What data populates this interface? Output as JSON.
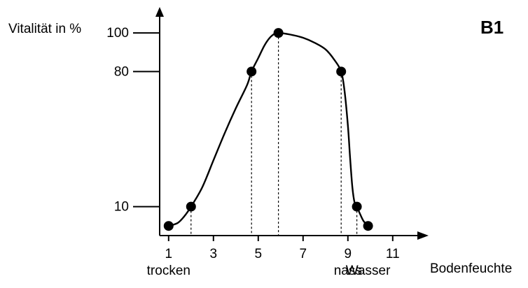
{
  "badge": "B1",
  "chart_data": {
    "type": "line",
    "ylabel": "Vitalität in %",
    "xlabel": "Bodenfeuchte",
    "xlim": [
      0.6,
      12.6
    ],
    "ylim": [
      -5,
      112
    ],
    "x_ticks": [
      1,
      3,
      5,
      7,
      9,
      11
    ],
    "x_tick_labels": [
      "1",
      "3",
      "5",
      "7",
      "9",
      "11"
    ],
    "y_ticks": [
      10,
      80,
      100
    ],
    "y_tick_labels": [
      "10",
      "80",
      "100"
    ],
    "x_categories": [
      {
        "x": 1,
        "label": "trocken"
      },
      {
        "x": 9,
        "label": "nass"
      },
      {
        "x": 9.9,
        "label": "Wasser"
      }
    ],
    "series": [
      {
        "points": [
          {
            "x": 1.0,
            "y": 0
          },
          {
            "x": 2.0,
            "y": 10
          },
          {
            "x": 4.7,
            "y": 80
          },
          {
            "x": 5.9,
            "y": 100
          },
          {
            "x": 8.7,
            "y": 80
          },
          {
            "x": 9.4,
            "y": 10
          },
          {
            "x": 9.9,
            "y": 0
          }
        ],
        "curve": [
          [
            1.0,
            0
          ],
          [
            1.4,
            1.5
          ],
          [
            1.7,
            5
          ],
          [
            2.0,
            10
          ],
          [
            2.5,
            20
          ],
          [
            3.0,
            34
          ],
          [
            3.5,
            48
          ],
          [
            4.0,
            61
          ],
          [
            4.5,
            73
          ],
          [
            4.7,
            80
          ],
          [
            5.0,
            87
          ],
          [
            5.3,
            94
          ],
          [
            5.6,
            98.5
          ],
          [
            5.9,
            100
          ],
          [
            6.5,
            99
          ],
          [
            7.0,
            97.5
          ],
          [
            7.5,
            95
          ],
          [
            8.0,
            91.5
          ],
          [
            8.4,
            86
          ],
          [
            8.7,
            80
          ],
          [
            8.85,
            70
          ],
          [
            9.0,
            52
          ],
          [
            9.1,
            35
          ],
          [
            9.2,
            20
          ],
          [
            9.3,
            12
          ],
          [
            9.4,
            10
          ],
          [
            9.55,
            6
          ],
          [
            9.7,
            2.5
          ],
          [
            9.9,
            0
          ]
        ]
      }
    ],
    "dashed_drops": [
      2.0,
      4.7,
      5.9,
      8.7,
      9.4
    ],
    "grid": false,
    "colors": {
      "line": "#000000",
      "axis": "#000000",
      "marker": "#000000"
    }
  }
}
